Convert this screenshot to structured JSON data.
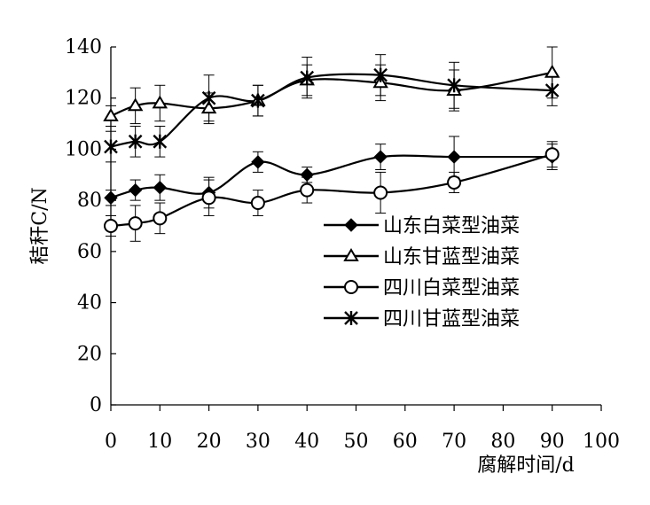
{
  "chart_data": {
    "type": "line",
    "title": "",
    "xlabel": "腐解时间/d",
    "ylabel": "秸秆C/N",
    "xlim": [
      0,
      100
    ],
    "ylim": [
      0,
      140
    ],
    "x_ticks": [
      0,
      10,
      20,
      30,
      40,
      50,
      60,
      70,
      80,
      90,
      100
    ],
    "y_ticks": [
      0,
      20,
      40,
      60,
      80,
      100,
      120,
      140
    ],
    "grid": false,
    "legend_position": "lower-right",
    "x": [
      0,
      5,
      10,
      20,
      30,
      40,
      55,
      70,
      90
    ],
    "series": [
      {
        "name": "山东白菜型油菜",
        "marker": "diamond",
        "values": [
          81,
          84,
          85,
          83,
          95,
          90,
          97,
          97,
          97
        ],
        "errors": [
          3,
          4,
          5,
          6,
          4,
          3,
          5,
          8,
          5
        ]
      },
      {
        "name": "山东甘蓝型油菜",
        "marker": "triangle",
        "values": [
          113,
          117,
          118,
          116,
          119,
          127,
          126,
          123,
          130
        ],
        "errors": [
          4,
          7,
          7,
          6,
          6,
          6,
          7,
          8,
          10
        ]
      },
      {
        "name": "四川白菜型油菜",
        "marker": "circle",
        "values": [
          70,
          71,
          73,
          81,
          79,
          84,
          83,
          87,
          98
        ],
        "errors": [
          4,
          7,
          6,
          7,
          5,
          5,
          8,
          4,
          5
        ]
      },
      {
        "name": "四川甘蓝型油菜",
        "marker": "star",
        "values": [
          101,
          103,
          103,
          120,
          119,
          128,
          129,
          125,
          123
        ],
        "errors": [
          6,
          6,
          6,
          9,
          6,
          8,
          8,
          9,
          6
        ]
      }
    ]
  }
}
